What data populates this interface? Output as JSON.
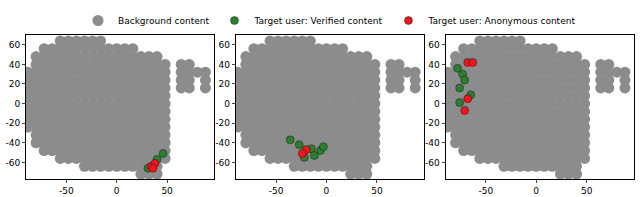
{
  "chart_data": {
    "type": "scatter",
    "legend": "top",
    "grid": false,
    "xlim": [
      -90,
      97
    ],
    "ylim": [
      -77,
      70
    ],
    "xticks": [
      -50,
      0,
      50
    ],
    "yticks": [
      -60,
      -40,
      -20,
      0,
      20,
      40,
      60
    ],
    "background": {
      "name": "Background content",
      "color": "#8c8c8c",
      "points": [
        [
          -56,
          64
        ],
        [
          -48,
          64
        ],
        [
          -40,
          64
        ],
        [
          -32,
          64
        ],
        [
          -24,
          64
        ],
        [
          -16,
          64
        ],
        [
          -72,
          56
        ],
        [
          -64,
          56
        ],
        [
          -56,
          56
        ],
        [
          -48,
          56
        ],
        [
          -40,
          56
        ],
        [
          -32,
          56
        ],
        [
          -24,
          56
        ],
        [
          -16,
          56
        ],
        [
          -8,
          56
        ],
        [
          0,
          56
        ],
        [
          8,
          56
        ],
        [
          16,
          56
        ],
        [
          -80,
          48
        ],
        [
          -72,
          48
        ],
        [
          -64,
          48
        ],
        [
          -56,
          48
        ],
        [
          -48,
          48
        ],
        [
          -40,
          48
        ],
        [
          -32,
          48
        ],
        [
          -24,
          48
        ],
        [
          -16,
          48
        ],
        [
          -8,
          48
        ],
        [
          0,
          48
        ],
        [
          8,
          48
        ],
        [
          16,
          48
        ],
        [
          24,
          48
        ],
        [
          32,
          48
        ],
        [
          40,
          48
        ],
        [
          -80,
          40
        ],
        [
          -72,
          40
        ],
        [
          -64,
          40
        ],
        [
          -56,
          40
        ],
        [
          -48,
          40
        ],
        [
          -40,
          40
        ],
        [
          -32,
          40
        ],
        [
          -24,
          40
        ],
        [
          -16,
          40
        ],
        [
          -8,
          40
        ],
        [
          0,
          40
        ],
        [
          8,
          40
        ],
        [
          16,
          40
        ],
        [
          24,
          40
        ],
        [
          32,
          40
        ],
        [
          40,
          40
        ],
        [
          48,
          40
        ],
        [
          -88,
          32
        ],
        [
          -80,
          32
        ],
        [
          -72,
          32
        ],
        [
          -64,
          32
        ],
        [
          -56,
          32
        ],
        [
          -48,
          32
        ],
        [
          -40,
          32
        ],
        [
          -32,
          32
        ],
        [
          -24,
          32
        ],
        [
          -16,
          32
        ],
        [
          -8,
          32
        ],
        [
          0,
          32
        ],
        [
          8,
          32
        ],
        [
          16,
          32
        ],
        [
          24,
          32
        ],
        [
          32,
          32
        ],
        [
          40,
          32
        ],
        [
          48,
          32
        ],
        [
          -88,
          24
        ],
        [
          -80,
          24
        ],
        [
          -72,
          24
        ],
        [
          -64,
          24
        ],
        [
          -56,
          24
        ],
        [
          -48,
          24
        ],
        [
          -40,
          24
        ],
        [
          -32,
          24
        ],
        [
          -24,
          24
        ],
        [
          -16,
          24
        ],
        [
          -8,
          24
        ],
        [
          0,
          24
        ],
        [
          8,
          24
        ],
        [
          16,
          24
        ],
        [
          24,
          24
        ],
        [
          32,
          24
        ],
        [
          40,
          24
        ],
        [
          48,
          24
        ],
        [
          -88,
          16
        ],
        [
          -80,
          16
        ],
        [
          -72,
          16
        ],
        [
          -64,
          16
        ],
        [
          -56,
          16
        ],
        [
          -48,
          16
        ],
        [
          -40,
          16
        ],
        [
          -32,
          16
        ],
        [
          -24,
          16
        ],
        [
          -16,
          16
        ],
        [
          -8,
          16
        ],
        [
          0,
          16
        ],
        [
          8,
          16
        ],
        [
          16,
          16
        ],
        [
          24,
          16
        ],
        [
          32,
          16
        ],
        [
          40,
          16
        ],
        [
          48,
          16
        ],
        [
          -88,
          8
        ],
        [
          -80,
          8
        ],
        [
          -72,
          8
        ],
        [
          -64,
          8
        ],
        [
          -56,
          8
        ],
        [
          -48,
          8
        ],
        [
          -40,
          8
        ],
        [
          -32,
          8
        ],
        [
          -24,
          8
        ],
        [
          -16,
          8
        ],
        [
          -8,
          8
        ],
        [
          0,
          8
        ],
        [
          8,
          8
        ],
        [
          16,
          8
        ],
        [
          24,
          8
        ],
        [
          32,
          8
        ],
        [
          40,
          8
        ],
        [
          48,
          8
        ],
        [
          -88,
          0
        ],
        [
          -80,
          0
        ],
        [
          -72,
          0
        ],
        [
          -64,
          0
        ],
        [
          -56,
          0
        ],
        [
          -48,
          0
        ],
        [
          -40,
          0
        ],
        [
          -32,
          0
        ],
        [
          -24,
          0
        ],
        [
          -16,
          0
        ],
        [
          -8,
          0
        ],
        [
          0,
          0
        ],
        [
          8,
          0
        ],
        [
          16,
          0
        ],
        [
          24,
          0
        ],
        [
          32,
          0
        ],
        [
          40,
          0
        ],
        [
          48,
          0
        ],
        [
          -88,
          -8
        ],
        [
          -80,
          -8
        ],
        [
          -72,
          -8
        ],
        [
          -64,
          -8
        ],
        [
          -56,
          -8
        ],
        [
          -48,
          -8
        ],
        [
          -40,
          -8
        ],
        [
          -32,
          -8
        ],
        [
          -24,
          -8
        ],
        [
          -16,
          -8
        ],
        [
          -8,
          -8
        ],
        [
          0,
          -8
        ],
        [
          8,
          -8
        ],
        [
          16,
          -8
        ],
        [
          24,
          -8
        ],
        [
          32,
          -8
        ],
        [
          40,
          -8
        ],
        [
          48,
          -8
        ],
        [
          -88,
          -16
        ],
        [
          -80,
          -16
        ],
        [
          -72,
          -16
        ],
        [
          -64,
          -16
        ],
        [
          -56,
          -16
        ],
        [
          -48,
          -16
        ],
        [
          -40,
          -16
        ],
        [
          -32,
          -16
        ],
        [
          -24,
          -16
        ],
        [
          -16,
          -16
        ],
        [
          -8,
          -16
        ],
        [
          0,
          -16
        ],
        [
          8,
          -16
        ],
        [
          16,
          -16
        ],
        [
          24,
          -16
        ],
        [
          32,
          -16
        ],
        [
          40,
          -16
        ],
        [
          48,
          -16
        ],
        [
          -88,
          -24
        ],
        [
          -80,
          -24
        ],
        [
          -72,
          -24
        ],
        [
          -64,
          -24
        ],
        [
          -56,
          -24
        ],
        [
          -48,
          -24
        ],
        [
          -40,
          -24
        ],
        [
          -32,
          -24
        ],
        [
          -24,
          -24
        ],
        [
          -16,
          -24
        ],
        [
          -8,
          -24
        ],
        [
          0,
          -24
        ],
        [
          8,
          -24
        ],
        [
          16,
          -24
        ],
        [
          24,
          -24
        ],
        [
          32,
          -24
        ],
        [
          40,
          -24
        ],
        [
          48,
          -24
        ],
        [
          -80,
          -32
        ],
        [
          -72,
          -32
        ],
        [
          -64,
          -32
        ],
        [
          -56,
          -32
        ],
        [
          -48,
          -32
        ],
        [
          -40,
          -32
        ],
        [
          -32,
          -32
        ],
        [
          -24,
          -32
        ],
        [
          -16,
          -32
        ],
        [
          -8,
          -32
        ],
        [
          0,
          -32
        ],
        [
          8,
          -32
        ],
        [
          16,
          -32
        ],
        [
          24,
          -32
        ],
        [
          32,
          -32
        ],
        [
          40,
          -32
        ],
        [
          48,
          -32
        ],
        [
          -80,
          -40
        ],
        [
          -72,
          -40
        ],
        [
          -64,
          -40
        ],
        [
          -56,
          -40
        ],
        [
          -48,
          -40
        ],
        [
          -40,
          -40
        ],
        [
          -32,
          -40
        ],
        [
          -24,
          -40
        ],
        [
          -16,
          -40
        ],
        [
          -8,
          -40
        ],
        [
          0,
          -40
        ],
        [
          8,
          -40
        ],
        [
          16,
          -40
        ],
        [
          24,
          -40
        ],
        [
          32,
          -40
        ],
        [
          40,
          -40
        ],
        [
          48,
          -40
        ],
        [
          -72,
          -48
        ],
        [
          -64,
          -48
        ],
        [
          -56,
          -48
        ],
        [
          -48,
          -48
        ],
        [
          -40,
          -48
        ],
        [
          -32,
          -48
        ],
        [
          -24,
          -48
        ],
        [
          -16,
          -48
        ],
        [
          -8,
          -48
        ],
        [
          0,
          -48
        ],
        [
          8,
          -48
        ],
        [
          16,
          -48
        ],
        [
          24,
          -48
        ],
        [
          32,
          -48
        ],
        [
          40,
          -48
        ],
        [
          48,
          -48
        ],
        [
          -56,
          -56
        ],
        [
          -48,
          -56
        ],
        [
          -40,
          -56
        ],
        [
          -32,
          -56
        ],
        [
          -24,
          -56
        ],
        [
          -16,
          -56
        ],
        [
          -8,
          -56
        ],
        [
          0,
          -56
        ],
        [
          8,
          -56
        ],
        [
          16,
          -56
        ],
        [
          24,
          -56
        ],
        [
          32,
          -56
        ],
        [
          40,
          -56
        ],
        [
          48,
          -56
        ],
        [
          -32,
          -64
        ],
        [
          -24,
          -64
        ],
        [
          -16,
          -64
        ],
        [
          -8,
          -64
        ],
        [
          0,
          -64
        ],
        [
          8,
          -64
        ],
        [
          16,
          -64
        ],
        [
          24,
          -64
        ],
        [
          32,
          -64
        ],
        [
          40,
          -64
        ],
        [
          24,
          -72
        ],
        [
          32,
          -72
        ],
        [
          40,
          -72
        ],
        [
          64,
          40
        ],
        [
          72,
          40
        ],
        [
          64,
          32
        ],
        [
          72,
          32
        ],
        [
          80,
          32
        ],
        [
          64,
          24
        ],
        [
          72,
          24
        ],
        [
          64,
          16
        ],
        [
          72,
          16
        ],
        [
          88,
          32
        ],
        [
          88,
          24
        ],
        [
          88,
          16
        ]
      ]
    },
    "panels": [
      {
        "series": [
          {
            "name": "Target user: Verified content",
            "color": "#2e7d32",
            "points": [
              [
                46,
                -51
              ],
              [
                40,
                -57
              ],
              [
                31,
                -66
              ]
            ]
          },
          {
            "name": "Target user: Anonymous content",
            "color": "#e8191c",
            "points": [
              [
                34,
                -64
              ],
              [
                38,
                -61
              ],
              [
                36,
                -66
              ]
            ]
          }
        ]
      },
      {
        "series": [
          {
            "name": "Target user: Verified content",
            "color": "#2e7d32",
            "points": [
              [
                -36,
                -37
              ],
              [
                -27,
                -42
              ],
              [
                -15,
                -46
              ],
              [
                -6,
                -48
              ],
              [
                -22,
                -55
              ],
              [
                -12,
                -53
              ],
              [
                -3,
                -44
              ]
            ]
          },
          {
            "name": "Target user: Anonymous content",
            "color": "#e8191c",
            "points": [
              [
                -20,
                -47
              ],
              [
                -24,
                -51
              ]
            ]
          }
        ]
      },
      {
        "series": [
          {
            "name": "Target user: Verified content",
            "color": "#2e7d32",
            "points": [
              [
                -78,
                36
              ],
              [
                -73,
                30
              ],
              [
                -71,
                24
              ],
              [
                -76,
                16
              ],
              [
                -65,
                9
              ],
              [
                -76,
                1
              ]
            ]
          },
          {
            "name": "Target user: Anonymous content",
            "color": "#e8191c",
            "points": [
              [
                -68,
                42
              ],
              [
                -63,
                42
              ],
              [
                -68,
                5
              ],
              [
                -71,
                -7
              ]
            ]
          }
        ]
      }
    ]
  }
}
